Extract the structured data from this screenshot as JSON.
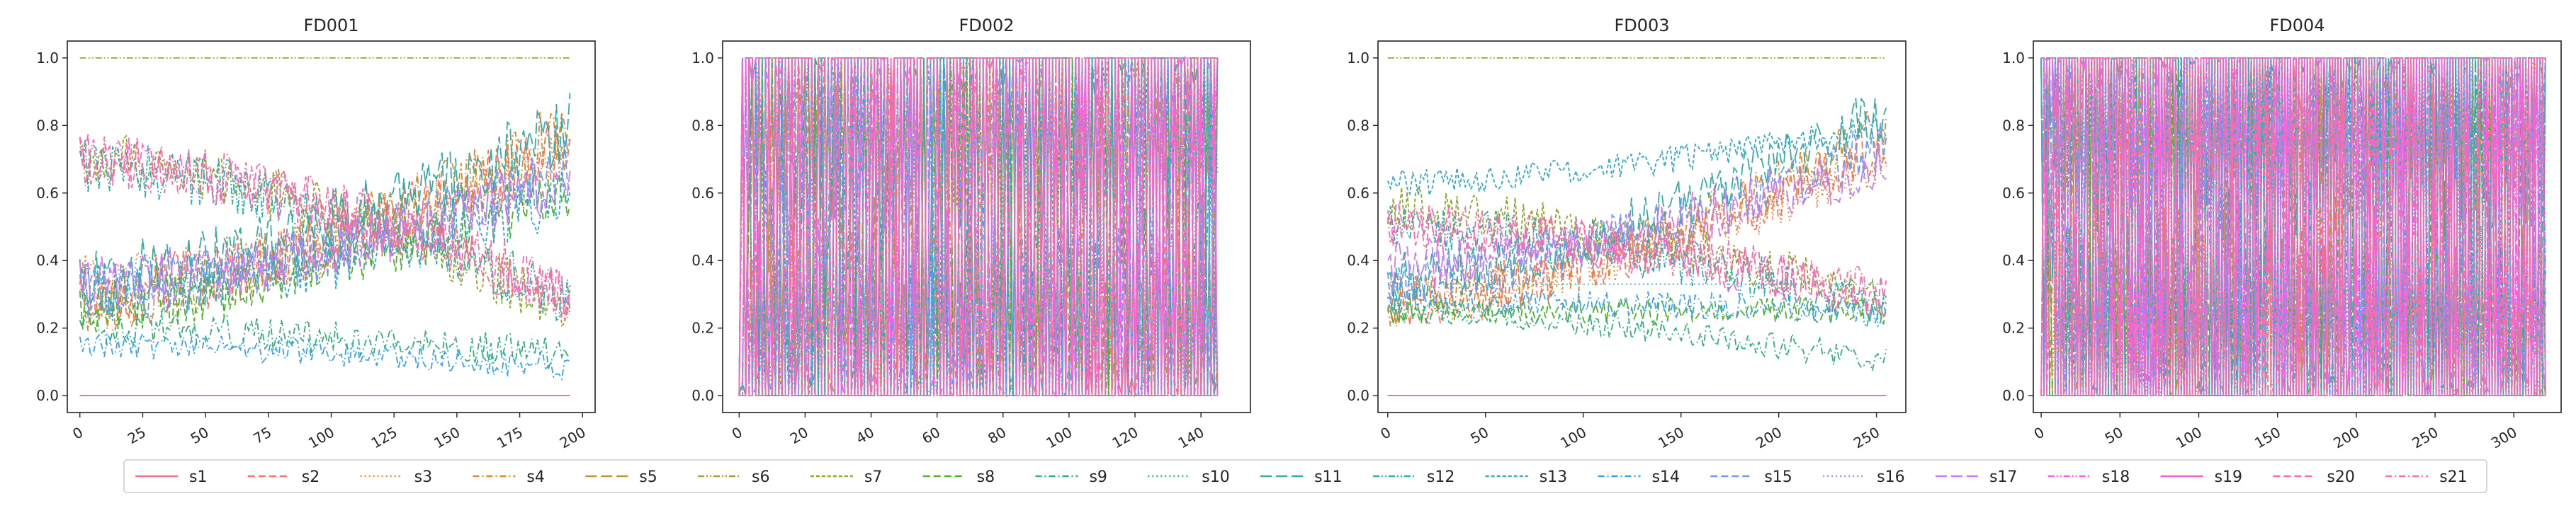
{
  "chart_data": [
    {
      "type": "line",
      "title": "FD001",
      "xlim": [
        -5,
        205
      ],
      "ylim": [
        -0.05,
        1.05
      ],
      "x_ticks": [
        0,
        25,
        50,
        75,
        100,
        125,
        150,
        175,
        200
      ],
      "y_ticks": [
        0.0,
        0.2,
        0.4,
        0.6,
        0.8,
        1.0
      ],
      "x_tick_rotation": 30,
      "grid": false,
      "series_profiles": [
        {
          "name": "s1",
          "start": 0.0,
          "end": 0.0,
          "noise": 0.0
        },
        {
          "name": "s2",
          "start": 0.3,
          "end": 0.75,
          "noise": 0.1
        },
        {
          "name": "s3",
          "start": 0.32,
          "end": 0.7,
          "noise": 0.1
        },
        {
          "name": "s4",
          "start": 0.28,
          "end": 0.8,
          "noise": 0.1
        },
        {
          "name": "s5",
          "start": 0.0,
          "end": 0.0,
          "noise": 0.0
        },
        {
          "name": "s6",
          "start": 1.0,
          "end": 1.0,
          "noise": 0.0
        },
        {
          "name": "s7",
          "start": 0.7,
          "end": 0.25,
          "noise": 0.08
        },
        {
          "name": "s8",
          "start": 0.27,
          "end": 0.62,
          "noise": 0.09
        },
        {
          "name": "s9",
          "start": 0.2,
          "end": 0.12,
          "noise": 0.05
        },
        {
          "name": "s10",
          "start": 0.0,
          "end": 0.0,
          "noise": 0.0
        },
        {
          "name": "s11",
          "start": 0.35,
          "end": 0.8,
          "noise": 0.1
        },
        {
          "name": "s12",
          "start": 0.68,
          "end": 0.28,
          "noise": 0.08
        },
        {
          "name": "s13",
          "start": 0.3,
          "end": 0.6,
          "noise": 0.09
        },
        {
          "name": "s14",
          "start": 0.15,
          "end": 0.08,
          "noise": 0.04
        },
        {
          "name": "s15",
          "start": 0.3,
          "end": 0.68,
          "noise": 0.09
        },
        {
          "name": "s16",
          "start": 0.0,
          "end": 0.0,
          "noise": 0.0
        },
        {
          "name": "s17",
          "start": 0.33,
          "end": 0.65,
          "noise": 0.09
        },
        {
          "name": "s18",
          "start": 0.0,
          "end": 0.0,
          "noise": 0.0
        },
        {
          "name": "s19",
          "start": 0.0,
          "end": 0.0,
          "noise": 0.0
        },
        {
          "name": "s20",
          "start": 0.7,
          "end": 0.28,
          "noise": 0.08
        },
        {
          "name": "s21",
          "start": 0.7,
          "end": 0.3,
          "noise": 0.08
        }
      ]
    },
    {
      "type": "line",
      "title": "FD002",
      "xlim": [
        -5,
        155
      ],
      "ylim": [
        -0.05,
        1.05
      ],
      "x_ticks": [
        0,
        20,
        40,
        60,
        80,
        100,
        120,
        140
      ],
      "y_ticks": [
        0.0,
        0.2,
        0.4,
        0.6,
        0.8,
        1.0
      ],
      "x_tick_rotation": 30,
      "grid": false,
      "series_profiles": [
        {
          "name": "s1",
          "start": 0.5,
          "end": 0.5,
          "noise": 0.5
        },
        {
          "name": "s2",
          "start": 0.5,
          "end": 0.5,
          "noise": 0.5
        },
        {
          "name": "s3",
          "start": 0.5,
          "end": 0.5,
          "noise": 0.5
        },
        {
          "name": "s4",
          "start": 0.5,
          "end": 0.5,
          "noise": 0.5
        },
        {
          "name": "s5",
          "start": 0.5,
          "end": 0.5,
          "noise": 0.5
        },
        {
          "name": "s6",
          "start": 0.5,
          "end": 0.5,
          "noise": 0.5
        },
        {
          "name": "s7",
          "start": 0.5,
          "end": 0.5,
          "noise": 0.5
        },
        {
          "name": "s8",
          "start": 0.5,
          "end": 0.5,
          "noise": 0.5
        },
        {
          "name": "s9",
          "start": 0.5,
          "end": 0.5,
          "noise": 0.5
        },
        {
          "name": "s10",
          "start": 0.5,
          "end": 0.5,
          "noise": 0.5
        },
        {
          "name": "s11",
          "start": 0.5,
          "end": 0.5,
          "noise": 0.5
        },
        {
          "name": "s12",
          "start": 0.5,
          "end": 0.5,
          "noise": 0.5
        },
        {
          "name": "s13",
          "start": 0.5,
          "end": 0.5,
          "noise": 0.5
        },
        {
          "name": "s14",
          "start": 0.5,
          "end": 0.5,
          "noise": 0.5
        },
        {
          "name": "s15",
          "start": 0.5,
          "end": 0.5,
          "noise": 0.5
        },
        {
          "name": "s16",
          "start": 0.5,
          "end": 0.5,
          "noise": 0.5
        },
        {
          "name": "s17",
          "start": 0.5,
          "end": 0.5,
          "noise": 0.5
        },
        {
          "name": "s18",
          "start": 0.5,
          "end": 0.5,
          "noise": 0.5
        },
        {
          "name": "s19",
          "start": 0.5,
          "end": 0.5,
          "noise": 0.5
        },
        {
          "name": "s20",
          "start": 0.5,
          "end": 0.5,
          "noise": 0.5
        },
        {
          "name": "s21",
          "start": 0.5,
          "end": 0.5,
          "noise": 0.5
        }
      ]
    },
    {
      "type": "line",
      "title": "FD003",
      "xlim": [
        -5,
        265
      ],
      "ylim": [
        -0.05,
        1.05
      ],
      "x_ticks": [
        0,
        50,
        100,
        150,
        200,
        250
      ],
      "y_ticks": [
        0.0,
        0.2,
        0.4,
        0.6,
        0.8,
        1.0
      ],
      "x_tick_rotation": 30,
      "grid": false,
      "series_profiles": [
        {
          "name": "s1",
          "start": 0.0,
          "end": 0.0,
          "noise": 0.0
        },
        {
          "name": "s2",
          "start": 0.28,
          "end": 0.75,
          "noise": 0.08
        },
        {
          "name": "s3",
          "start": 0.3,
          "end": 0.7,
          "noise": 0.08
        },
        {
          "name": "s4",
          "start": 0.27,
          "end": 0.8,
          "noise": 0.08
        },
        {
          "name": "s5",
          "start": 0.0,
          "end": 0.0,
          "noise": 0.0
        },
        {
          "name": "s6",
          "start": 1.0,
          "end": 1.0,
          "noise": 0.0
        },
        {
          "name": "s7",
          "start": 0.55,
          "end": 0.28,
          "noise": 0.07
        },
        {
          "name": "s8",
          "start": 0.25,
          "end": 0.25,
          "noise": 0.04
        },
        {
          "name": "s9",
          "start": 0.25,
          "end": 0.1,
          "noise": 0.04
        },
        {
          "name": "s10",
          "start": 0.33,
          "end": 0.33,
          "noise": 0.0
        },
        {
          "name": "s11",
          "start": 0.35,
          "end": 0.85,
          "noise": 0.08
        },
        {
          "name": "s12",
          "start": 0.5,
          "end": 0.25,
          "noise": 0.07
        },
        {
          "name": "s13",
          "start": 0.63,
          "end": 0.8,
          "noise": 0.04
        },
        {
          "name": "s14",
          "start": 0.28,
          "end": 0.25,
          "noise": 0.04
        },
        {
          "name": "s15",
          "start": 0.35,
          "end": 0.75,
          "noise": 0.08
        },
        {
          "name": "s16",
          "start": 0.0,
          "end": 0.0,
          "noise": 0.0
        },
        {
          "name": "s17",
          "start": 0.38,
          "end": 0.7,
          "noise": 0.08
        },
        {
          "name": "s18",
          "start": 0.0,
          "end": 0.0,
          "noise": 0.0
        },
        {
          "name": "s19",
          "start": 0.0,
          "end": 0.0,
          "noise": 0.0
        },
        {
          "name": "s20",
          "start": 0.5,
          "end": 0.28,
          "noise": 0.07
        },
        {
          "name": "s21",
          "start": 0.5,
          "end": 0.3,
          "noise": 0.07
        }
      ]
    },
    {
      "type": "line",
      "title": "FD004",
      "xlim": [
        -5,
        330
      ],
      "ylim": [
        -0.05,
        1.05
      ],
      "x_ticks": [
        0,
        50,
        100,
        150,
        200,
        250,
        300
      ],
      "y_ticks": [
        0.0,
        0.2,
        0.4,
        0.6,
        0.8,
        1.0
      ],
      "x_tick_rotation": 30,
      "grid": false,
      "series_profiles": [
        {
          "name": "s1",
          "start": 0.5,
          "end": 0.5,
          "noise": 0.5
        },
        {
          "name": "s2",
          "start": 0.5,
          "end": 0.5,
          "noise": 0.5
        },
        {
          "name": "s3",
          "start": 0.5,
          "end": 0.5,
          "noise": 0.5
        },
        {
          "name": "s4",
          "start": 0.5,
          "end": 0.5,
          "noise": 0.5
        },
        {
          "name": "s5",
          "start": 0.5,
          "end": 0.5,
          "noise": 0.5
        },
        {
          "name": "s6",
          "start": 0.5,
          "end": 0.5,
          "noise": 0.5
        },
        {
          "name": "s7",
          "start": 0.5,
          "end": 0.5,
          "noise": 0.5
        },
        {
          "name": "s8",
          "start": 0.5,
          "end": 0.5,
          "noise": 0.5
        },
        {
          "name": "s9",
          "start": 0.5,
          "end": 0.5,
          "noise": 0.5
        },
        {
          "name": "s10",
          "start": 0.5,
          "end": 0.5,
          "noise": 0.5
        },
        {
          "name": "s11",
          "start": 0.5,
          "end": 0.5,
          "noise": 0.5
        },
        {
          "name": "s12",
          "start": 0.5,
          "end": 0.5,
          "noise": 0.5
        },
        {
          "name": "s13",
          "start": 0.5,
          "end": 0.5,
          "noise": 0.5
        },
        {
          "name": "s14",
          "start": 0.5,
          "end": 0.5,
          "noise": 0.5
        },
        {
          "name": "s15",
          "start": 0.5,
          "end": 0.5,
          "noise": 0.5
        },
        {
          "name": "s16",
          "start": 0.5,
          "end": 0.5,
          "noise": 0.5
        },
        {
          "name": "s17",
          "start": 0.5,
          "end": 0.5,
          "noise": 0.5
        },
        {
          "name": "s18",
          "start": 0.5,
          "end": 0.5,
          "noise": 0.5
        },
        {
          "name": "s19",
          "start": 0.5,
          "end": 0.5,
          "noise": 0.5
        },
        {
          "name": "s20",
          "start": 0.5,
          "end": 0.5,
          "noise": 0.5
        },
        {
          "name": "s21",
          "start": 0.5,
          "end": 0.5,
          "noise": 0.5
        }
      ]
    }
  ],
  "legend": {
    "placement": "bottom-center",
    "entries": [
      {
        "name": "s1",
        "color": "#f77189",
        "dash": "solid"
      },
      {
        "name": "s2",
        "color": "#f67662",
        "dash": "dashed"
      },
      {
        "name": "s3",
        "color": "#e6803c",
        "dash": "dotted"
      },
      {
        "name": "s4",
        "color": "#d88b31",
        "dash": "dashdot"
      },
      {
        "name": "s5",
        "color": "#bb9832",
        "dash": "longdash"
      },
      {
        "name": "s6",
        "color": "#a89f32",
        "dash": "dashdotdot"
      },
      {
        "name": "s7",
        "color": "#8fa532",
        "dash": "densedash"
      },
      {
        "name": "s8",
        "color": "#50b131",
        "dash": "dashed"
      },
      {
        "name": "s9",
        "color": "#33b07a",
        "dash": "dashdot"
      },
      {
        "name": "s10",
        "color": "#34ae91",
        "dash": "dotted"
      },
      {
        "name": "s11",
        "color": "#35aca4",
        "dash": "longdash"
      },
      {
        "name": "s12",
        "color": "#36aab4",
        "dash": "dashdotdot"
      },
      {
        "name": "s13",
        "color": "#38a8c5",
        "dash": "densedash"
      },
      {
        "name": "s14",
        "color": "#3ba3ec",
        "dash": "dashdot"
      },
      {
        "name": "s15",
        "color": "#6e9bf4",
        "dash": "dashed"
      },
      {
        "name": "s16",
        "color": "#a48cf4",
        "dash": "dotted"
      },
      {
        "name": "s17",
        "color": "#cc7af4",
        "dash": "longdash"
      },
      {
        "name": "s18",
        "color": "#f45cf2",
        "dash": "dashdotdot"
      },
      {
        "name": "s19",
        "color": "#f563d3",
        "dash": "solid"
      },
      {
        "name": "s20",
        "color": "#f66bb8",
        "dash": "dashed"
      },
      {
        "name": "s21",
        "color": "#f7709f",
        "dash": "dashdot"
      }
    ]
  }
}
